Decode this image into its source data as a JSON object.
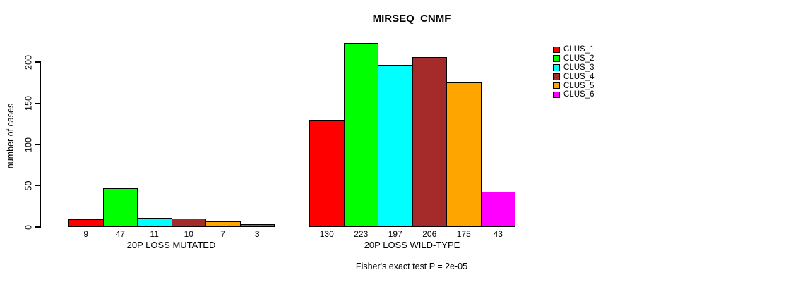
{
  "chart_data": {
    "type": "bar",
    "title": "MIRSEQ_CNMF",
    "ylabel": "number of cases",
    "xlabel": "",
    "ylim": [
      0,
      230
    ],
    "yticks": [
      0,
      50,
      100,
      150,
      200
    ],
    "grid": false,
    "legend_position": "right",
    "categories": [
      "20P LOSS MUTATED",
      "20P LOSS WILD-TYPE"
    ],
    "series": [
      {
        "name": "CLUS_1",
        "color": "#FF0000",
        "values": [
          9,
          130
        ]
      },
      {
        "name": "CLUS_2",
        "color": "#00FF00",
        "values": [
          47,
          223
        ]
      },
      {
        "name": "CLUS_3",
        "color": "#00FFFF",
        "values": [
          11,
          197
        ]
      },
      {
        "name": "CLUS_4",
        "color": "#A52A2A",
        "values": [
          10,
          206
        ]
      },
      {
        "name": "CLUS_5",
        "color": "#FFA500",
        "values": [
          7,
          175
        ]
      },
      {
        "name": "CLUS_6",
        "color": "#FF00FF",
        "values": [
          3,
          43
        ]
      }
    ],
    "bar_value_labels": {
      "20P LOSS MUTATED": [
        9,
        47,
        11,
        10,
        7,
        3
      ],
      "20P LOSS WILD-TYPE": [
        130,
        223,
        197,
        206,
        175,
        43
      ]
    },
    "annotation": "Fisher's exact test P = 2e-05"
  },
  "colors": {
    "background": "#FFFFFF",
    "axis": "#000000",
    "text": "#000000"
  }
}
